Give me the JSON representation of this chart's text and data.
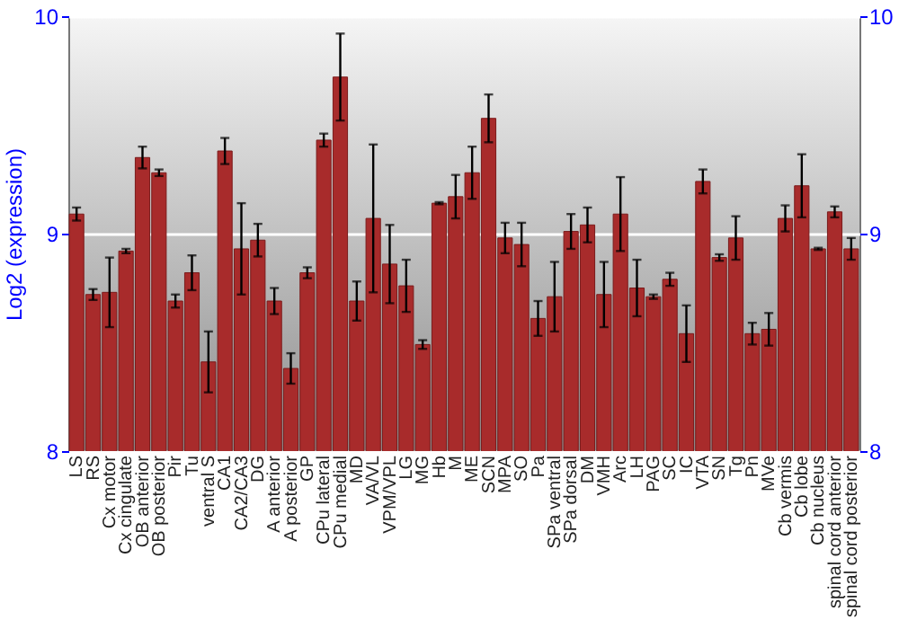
{
  "chart_data": {
    "type": "bar",
    "ylabel": "Log2 (expression)",
    "categories": [
      "LS",
      "RS",
      "Cx motor",
      "Cx cingulate",
      "OB anterior",
      "OB posterior",
      "Pir",
      "Tu",
      "ventral S",
      "CA1",
      "CA2/CA3",
      "DG",
      "A anterior",
      "A posterior",
      "GP",
      "CPu lateral",
      "CPu medial",
      "MD",
      "VA/VL",
      "VPM/VPL",
      "LG",
      "MG",
      "Hb",
      "M",
      "ME",
      "SCN",
      "MPA",
      "SO",
      "Pa",
      "SPa ventral",
      "SPa dorsal",
      "DM",
      "VMH",
      "Arc",
      "LH",
      "PAG",
      "SC",
      "IC",
      "VTA",
      "SN",
      "Tg",
      "Pn",
      "MVe",
      "Cb vermis",
      "Cb lobe",
      "Cb nucleus",
      "spinal cord anterior",
      "spinal cord posterior"
    ],
    "series": [
      {
        "color": "#a82b2b",
        "values": [
          9.09,
          8.72,
          8.73,
          8.92,
          9.35,
          9.28,
          8.69,
          8.82,
          8.41,
          9.38,
          8.93,
          8.97,
          8.69,
          8.38,
          8.82,
          9.43,
          9.72,
          8.69,
          9.07,
          8.86,
          8.76,
          8.49,
          9.14,
          9.17,
          9.28,
          9.53,
          8.98,
          8.95,
          8.61,
          8.71,
          9.01,
          9.04,
          8.72,
          9.09,
          8.75,
          8.71,
          8.79,
          8.54,
          9.24,
          8.89,
          8.98,
          8.54,
          8.56,
          9.07,
          9.22,
          8.93,
          9.1,
          8.93
        ],
        "errors": [
          0.03,
          0.025,
          0.16,
          0.01,
          0.05,
          0.015,
          0.03,
          0.08,
          0.14,
          0.06,
          0.21,
          0.075,
          0.06,
          0.07,
          0.025,
          0.03,
          0.2,
          0.09,
          0.34,
          0.18,
          0.12,
          0.02,
          0.005,
          0.1,
          0.12,
          0.11,
          0.07,
          0.1,
          0.08,
          0.16,
          0.08,
          0.08,
          0.15,
          0.17,
          0.13,
          0.01,
          0.03,
          0.13,
          0.055,
          0.015,
          0.1,
          0.05,
          0.075,
          0.06,
          0.145,
          0.005,
          0.025,
          0.05
        ]
      }
    ],
    "ylim": [
      8,
      10
    ],
    "yticks": [
      8,
      9,
      10
    ],
    "y2lim": [
      8,
      10
    ],
    "y2ticks": [
      8,
      9,
      10
    ],
    "grid": "y"
  }
}
